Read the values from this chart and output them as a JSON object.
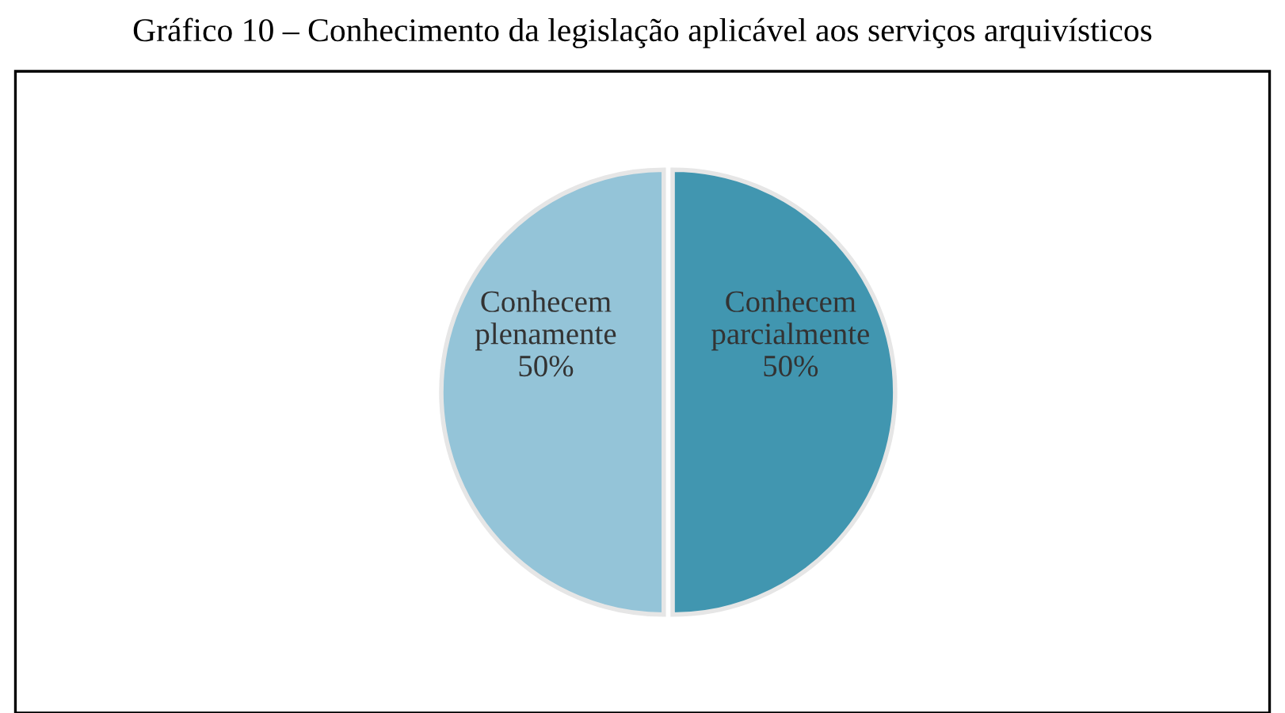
{
  "chart_data": {
    "type": "pie",
    "title": "Gráfico 10 – Conhecimento da legislação aplicável aos serviços arquivísticos",
    "categories": [
      "Conhecem parcialmente",
      "Conhecem plenamente"
    ],
    "values": [
      50,
      50
    ],
    "colors": [
      "#4196b0",
      "#94c4d8"
    ],
    "value_labels": [
      "50%",
      "50%"
    ],
    "legend": false
  }
}
